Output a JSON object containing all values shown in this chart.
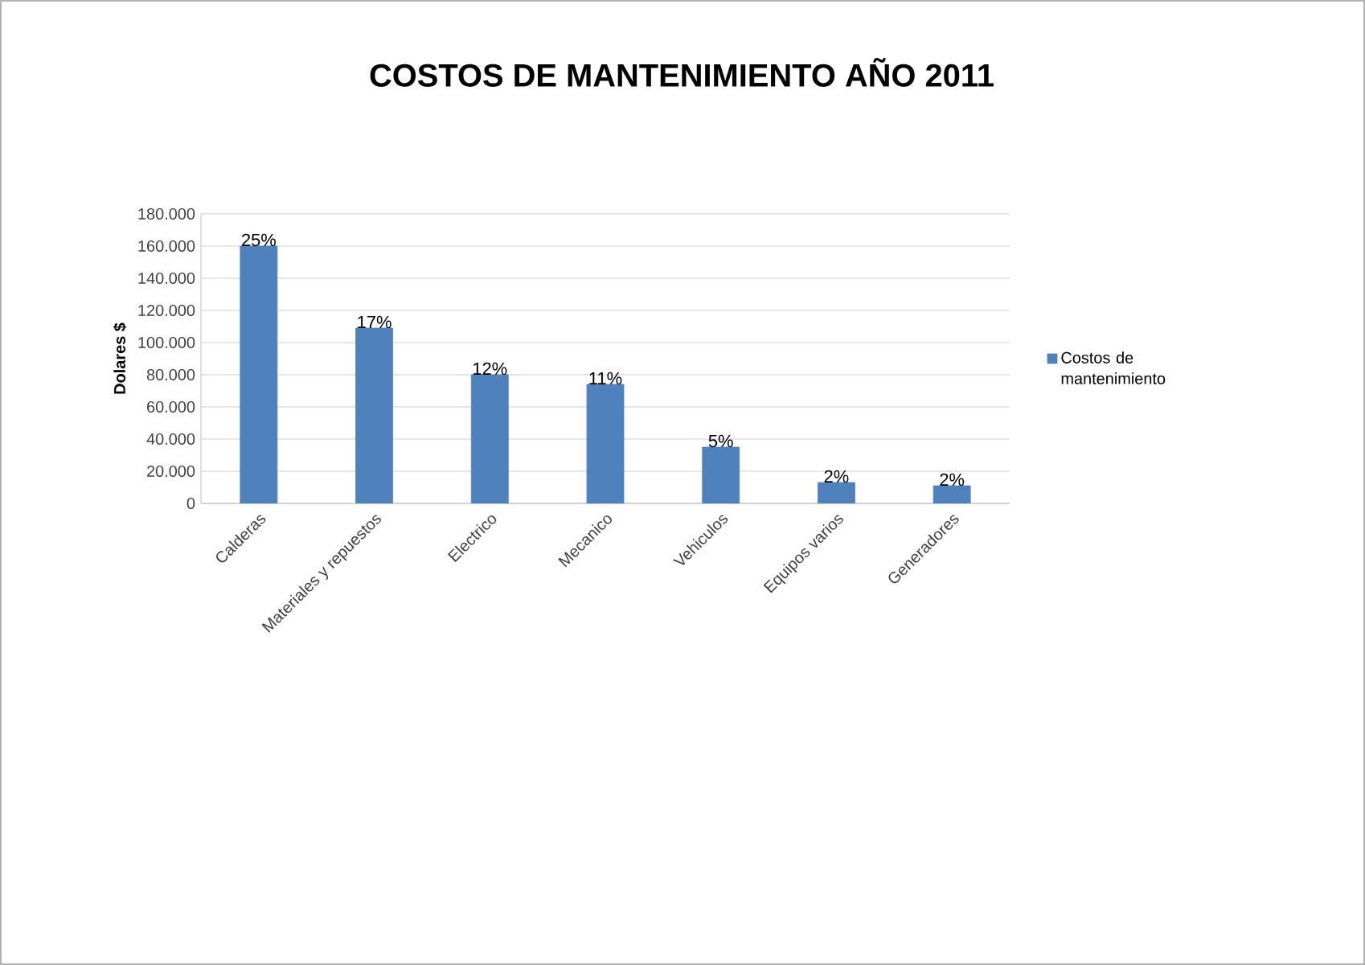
{
  "chart_data": {
    "type": "bar",
    "title": "COSTOS DE MANTENIMIENTO  AÑO 2011",
    "ylabel": "Dolares $",
    "categories": [
      "Calderas",
      "Materiales y repuestos",
      "Electrico",
      "Mecanico",
      "Vehiculos",
      "Equipos varios",
      "Generadores"
    ],
    "series": [
      {
        "name": "Costos de mantenimiento",
        "color": "#4f81bd",
        "values": [
          160000,
          109000,
          80000,
          74000,
          35000,
          13000,
          11000
        ]
      }
    ],
    "annotations": [
      {
        "text": "25%",
        "x": "Calderas",
        "y": 160000
      },
      {
        "text": "17%",
        "x": "Materiales y repuestos",
        "y": 109000
      },
      {
        "text": "12%",
        "x": "Electrico",
        "y": 80000
      },
      {
        "text": "11%",
        "x": "Mecanico",
        "y": 74000
      },
      {
        "text": "5%",
        "x": "Vehiculos",
        "y": 35000
      },
      {
        "text": "2%",
        "x": "Equipos varios",
        "y": 13000
      },
      {
        "text": "2%",
        "x": "Generadores",
        "y": 11000
      }
    ],
    "ylim": [
      0,
      180000
    ],
    "yticks": [
      0,
      {
        "value": 20000,
        "label": "20.000"
      },
      {
        "value": 40000,
        "label": "40.000"
      },
      {
        "value": 60000,
        "label": "60.000"
      },
      {
        "value": 80000,
        "label": "80.000"
      },
      {
        "value": 100000,
        "label": "100.000"
      },
      {
        "value": 120000,
        "label": "120.000"
      },
      {
        "value": 140000,
        "label": "140.000"
      },
      {
        "value": 160000,
        "label": "160.000"
      },
      {
        "value": 180000,
        "label": "180.000"
      }
    ],
    "grid": "y",
    "legend": "right"
  }
}
